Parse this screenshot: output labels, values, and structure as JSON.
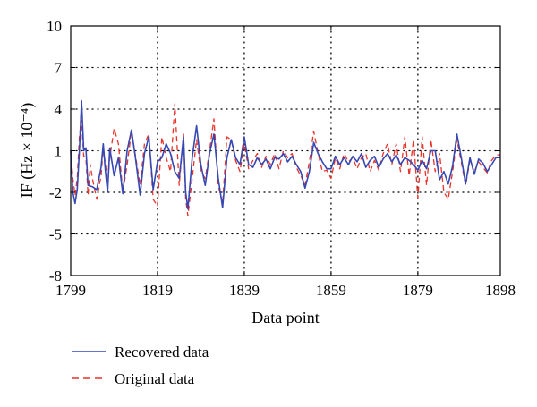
{
  "chart_data": {
    "type": "line",
    "title": "",
    "xlabel": "Data point",
    "ylabel": "IF (Hz × 10⁻⁴)",
    "xlim": [
      1799,
      1898
    ],
    "ylim": [
      -8,
      10
    ],
    "x_ticks": [
      1799,
      1819,
      1839,
      1859,
      1879,
      1898
    ],
    "y_ticks": [
      -8,
      -5,
      -2,
      1,
      4,
      7,
      10
    ],
    "grid": "dotted",
    "legend_position": "bottom-left-outside",
    "series": [
      {
        "name": "Recovered data",
        "color": "#3548b4",
        "style": "solid",
        "points": [
          [
            1799,
            1.0
          ],
          [
            1799.5,
            -2.0
          ],
          [
            1800,
            -2.8
          ],
          [
            1800.5,
            -1.8
          ],
          [
            1801,
            1.0
          ],
          [
            1801.5,
            4.6
          ],
          [
            1802,
            1.0
          ],
          [
            1802.5,
            1.2
          ],
          [
            1803,
            -1.5
          ],
          [
            1804,
            -1.6
          ],
          [
            1805,
            -1.8
          ],
          [
            1806,
            -0.2
          ],
          [
            1806.5,
            1.5
          ],
          [
            1807,
            -0.5
          ],
          [
            1807.5,
            -2.0
          ],
          [
            1808,
            1.2
          ],
          [
            1809,
            -0.8
          ],
          [
            1810,
            0.5
          ],
          [
            1811,
            -2.1
          ],
          [
            1812,
            1.0
          ],
          [
            1813,
            2.5
          ],
          [
            1814,
            0.3
          ],
          [
            1815,
            -2.2
          ],
          [
            1816,
            0.8
          ],
          [
            1817,
            2.0
          ],
          [
            1818,
            -1.8
          ],
          [
            1819,
            0.2
          ],
          [
            1820,
            0.5
          ],
          [
            1821,
            1.5
          ],
          [
            1822,
            0.8
          ],
          [
            1823,
            -0.5
          ],
          [
            1824,
            -1.0
          ],
          [
            1825,
            2.0
          ],
          [
            1825.5,
            -2.0
          ],
          [
            1826,
            -3.2
          ],
          [
            1827,
            0.5
          ],
          [
            1828,
            2.8
          ],
          [
            1829,
            0.0
          ],
          [
            1830,
            -1.5
          ],
          [
            1831,
            0.8
          ],
          [
            1832,
            2.2
          ],
          [
            1833,
            -1.0
          ],
          [
            1834,
            -3.1
          ],
          [
            1835,
            0.5
          ],
          [
            1836,
            1.8
          ],
          [
            1837,
            0.5
          ],
          [
            1838,
            0.0
          ],
          [
            1839,
            2.0
          ],
          [
            1840,
            0.0
          ],
          [
            1841,
            -0.2
          ],
          [
            1842,
            0.5
          ],
          [
            1843,
            0.0
          ],
          [
            1844,
            0.4
          ],
          [
            1845,
            -0.3
          ],
          [
            1846,
            0.5
          ],
          [
            1847,
            0.4
          ],
          [
            1848,
            0.8
          ],
          [
            1849,
            0.2
          ],
          [
            1850,
            0.6
          ],
          [
            1851,
            0.0
          ],
          [
            1852,
            -0.5
          ],
          [
            1853,
            -1.7
          ],
          [
            1854,
            -0.5
          ],
          [
            1855,
            1.6
          ],
          [
            1856,
            0.8
          ],
          [
            1857,
            0.2
          ],
          [
            1858,
            -0.3
          ],
          [
            1859,
            -0.3
          ],
          [
            1860,
            0.6
          ],
          [
            1861,
            0.0
          ],
          [
            1862,
            0.5
          ],
          [
            1863,
            0.0
          ],
          [
            1864,
            0.6
          ],
          [
            1865,
            0.2
          ],
          [
            1866,
            0.8
          ],
          [
            1867,
            -0.2
          ],
          [
            1868,
            0.3
          ],
          [
            1869,
            0.6
          ],
          [
            1870,
            -0.2
          ],
          [
            1871,
            0.4
          ],
          [
            1872,
            0.8
          ],
          [
            1873,
            0.2
          ],
          [
            1874,
            0.7
          ],
          [
            1875,
            0.0
          ],
          [
            1876,
            0.5
          ],
          [
            1877,
            0.3
          ],
          [
            1878,
            0.0
          ],
          [
            1879,
            -0.4
          ],
          [
            1880,
            0.3
          ],
          [
            1881,
            -0.3
          ],
          [
            1882,
            1.0
          ],
          [
            1883,
            1.0
          ],
          [
            1884,
            -1.1
          ],
          [
            1885,
            -0.5
          ],
          [
            1886,
            -1.4
          ],
          [
            1887,
            -0.1
          ],
          [
            1888,
            2.2
          ],
          [
            1889,
            0.5
          ],
          [
            1890,
            -1.4
          ],
          [
            1891,
            0.5
          ],
          [
            1892,
            -0.7
          ],
          [
            1893,
            0.4
          ],
          [
            1894,
            0.1
          ],
          [
            1895,
            -0.5
          ],
          [
            1896,
            0.0
          ],
          [
            1897,
            0.5
          ],
          [
            1898,
            0.5
          ]
        ]
      },
      {
        "name": "Original data",
        "color": "#e8322a",
        "style": "dashed",
        "points": [
          [
            1799,
            1.0
          ],
          [
            1799.5,
            -1.0
          ],
          [
            1800,
            -2.2
          ],
          [
            1800.5,
            -1.0
          ],
          [
            1801,
            2.0
          ],
          [
            1801.5,
            3.2
          ],
          [
            1802,
            0.6
          ],
          [
            1802.5,
            0.5
          ],
          [
            1803,
            -2.2
          ],
          [
            1803.5,
            0.0
          ],
          [
            1804,
            -1.0
          ],
          [
            1805,
            -2.5
          ],
          [
            1806,
            -0.8
          ],
          [
            1806.5,
            1.2
          ],
          [
            1807,
            0.0
          ],
          [
            1807.5,
            -1.5
          ],
          [
            1808,
            0.5
          ],
          [
            1809,
            2.6
          ],
          [
            1810,
            1.5
          ],
          [
            1811,
            -2.0
          ],
          [
            1812,
            0.0
          ],
          [
            1813,
            2.4
          ],
          [
            1814,
            0.5
          ],
          [
            1815,
            -1.5
          ],
          [
            1816,
            1.5
          ],
          [
            1817,
            2.2
          ],
          [
            1818,
            -2.5
          ],
          [
            1819,
            -3.0
          ],
          [
            1820,
            2.0
          ],
          [
            1821,
            0.5
          ],
          [
            1822,
            -0.5
          ],
          [
            1823,
            4.4
          ],
          [
            1824,
            -1.5
          ],
          [
            1825,
            2.2
          ],
          [
            1825.5,
            -2.5
          ],
          [
            1826,
            -3.7
          ],
          [
            1827,
            -1.0
          ],
          [
            1828,
            1.8
          ],
          [
            1829,
            -0.5
          ],
          [
            1830,
            -1.0
          ],
          [
            1831,
            1.0
          ],
          [
            1832,
            3.3
          ],
          [
            1833,
            -1.5
          ],
          [
            1834,
            -2.8
          ],
          [
            1835,
            2.0
          ],
          [
            1836,
            1.8
          ],
          [
            1837,
            0.3
          ],
          [
            1838,
            -0.5
          ],
          [
            1839,
            1.5
          ],
          [
            1840,
            -0.3
          ],
          [
            1841,
            0.3
          ],
          [
            1842,
            0.8
          ],
          [
            1843,
            -0.2
          ],
          [
            1844,
            0.6
          ],
          [
            1845,
            0.0
          ],
          [
            1846,
            0.8
          ],
          [
            1847,
            -0.3
          ],
          [
            1848,
            1.0
          ],
          [
            1849,
            0.5
          ],
          [
            1850,
            0.8
          ],
          [
            1851,
            -0.2
          ],
          [
            1852,
            -0.8
          ],
          [
            1853,
            -1.5
          ],
          [
            1854,
            0.2
          ],
          [
            1855,
            2.4
          ],
          [
            1856,
            0.8
          ],
          [
            1857,
            -0.5
          ],
          [
            1858,
            -0.4
          ],
          [
            1859,
            -1.0
          ],
          [
            1860,
            0.5
          ],
          [
            1861,
            -0.3
          ],
          [
            1862,
            0.8
          ],
          [
            1863,
            0.2
          ],
          [
            1864,
            0.5
          ],
          [
            1865,
            -0.3
          ],
          [
            1866,
            0.5
          ],
          [
            1867,
            0.8
          ],
          [
            1868,
            -0.5
          ],
          [
            1869,
            0.3
          ],
          [
            1870,
            -0.4
          ],
          [
            1871,
            0.8
          ],
          [
            1872,
            1.5
          ],
          [
            1873,
            0.0
          ],
          [
            1874,
            1.5
          ],
          [
            1875,
            -0.5
          ],
          [
            1876,
            2.0
          ],
          [
            1877,
            -0.8
          ],
          [
            1878,
            1.8
          ],
          [
            1879,
            -2.4
          ],
          [
            1880,
            2.0
          ],
          [
            1881,
            -1.5
          ],
          [
            1882,
            1.8
          ],
          [
            1883,
            -0.5
          ],
          [
            1884,
            0.8
          ],
          [
            1885,
            -2.0
          ],
          [
            1886,
            -2.5
          ],
          [
            1887,
            -0.5
          ],
          [
            1888,
            1.8
          ],
          [
            1889,
            0.2
          ],
          [
            1890,
            -1.5
          ],
          [
            1891,
            0.3
          ],
          [
            1892,
            -0.5
          ],
          [
            1893,
            0.2
          ],
          [
            1894,
            -0.2
          ],
          [
            1895,
            -0.6
          ],
          [
            1896,
            0.3
          ],
          [
            1897,
            0.7
          ],
          [
            1898,
            0.7
          ]
        ]
      }
    ]
  }
}
